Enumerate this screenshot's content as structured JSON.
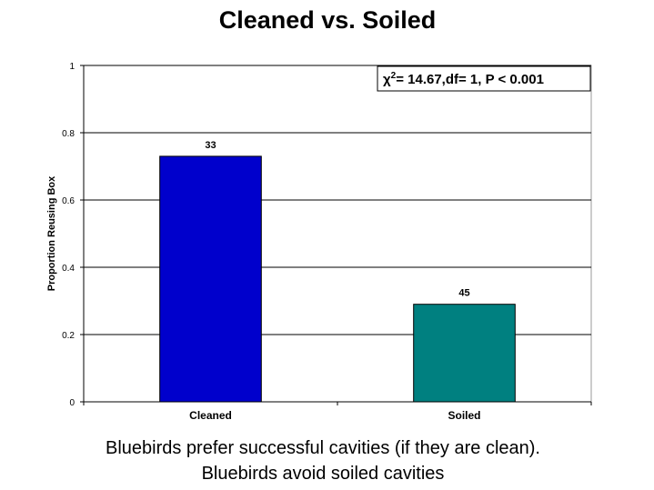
{
  "chart_data": {
    "type": "bar",
    "title": "Cleaned vs. Soiled",
    "y_label": "Proportion Reusing Box",
    "categories": [
      "Cleaned",
      "Soiled"
    ],
    "values": [
      0.73,
      0.29
    ],
    "colors": [
      "#0000cc",
      "#008080"
    ],
    "sample_sizes": [
      33,
      45
    ],
    "ylim": [
      0,
      1
    ],
    "yticks": [
      0,
      0.2,
      0.4,
      0.6,
      0.8,
      1
    ],
    "grid": true,
    "stat_annotation": {
      "symbol": "χ",
      "superscript": "2",
      "text": "= 14.67,df= 1, P < 0.001"
    },
    "caption": [
      "Bluebirds prefer successful cavities (if they are clean).",
      "Bluebirds avoid soiled cavities"
    ]
  }
}
